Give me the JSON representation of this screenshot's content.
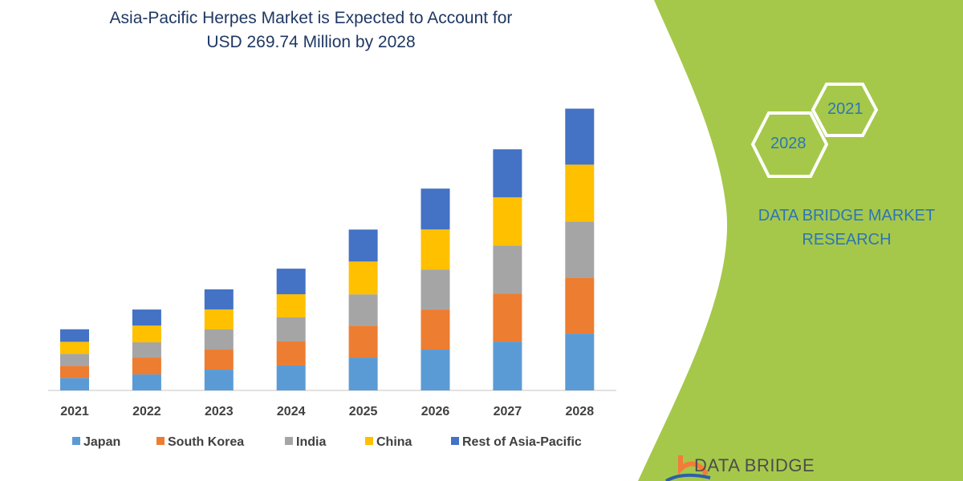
{
  "chart_data": {
    "type": "bar",
    "stacked": true,
    "title": "Asia-Pacific Herpes Market is Expected to Account for USD 269.74 Million by 2028",
    "title_lines": [
      "Asia-Pacific Herpes Market is Expected to Account for",
      "USD 269.74 Million by 2028"
    ],
    "categories": [
      "2021",
      "2022",
      "2023",
      "2024",
      "2025",
      "2026",
      "2027",
      "2028"
    ],
    "series": [
      {
        "name": "Japan",
        "color": "#5b9bd5",
        "values": [
          12.0,
          15.3,
          19.9,
          23.8,
          31.4,
          39.1,
          46.7,
          54.4
        ]
      },
      {
        "name": "South Korea",
        "color": "#ed7d31",
        "values": [
          11.5,
          16.1,
          19.2,
          23.0,
          30.6,
          38.3,
          46.0,
          53.6
        ]
      },
      {
        "name": "India",
        "color": "#a5a5a5",
        "values": [
          11.5,
          14.6,
          19.2,
          23.0,
          29.9,
          38.3,
          46.0,
          53.6
        ]
      },
      {
        "name": "China",
        "color": "#ffc000",
        "values": [
          11.5,
          16.1,
          19.2,
          22.2,
          31.4,
          38.3,
          46.0,
          54.4
        ]
      },
      {
        "name": "Rest of Asia-Pacific",
        "color": "#4472c4",
        "values": [
          12.0,
          15.3,
          19.2,
          24.5,
          30.6,
          39.1,
          46.0,
          53.6
        ]
      }
    ],
    "ylim": [
      0,
      270
    ],
    "y_axis_shown": false,
    "grid": false,
    "legend_position": "bottom",
    "unit": "USD Million"
  },
  "side_panel": {
    "color": "#a5c84a",
    "hex_years": [
      "2021",
      "2028"
    ],
    "brand_lines": [
      "DATA BRIDGE MARKET",
      "RESEARCH"
    ],
    "logo_text": "DATA BRIDGE"
  }
}
